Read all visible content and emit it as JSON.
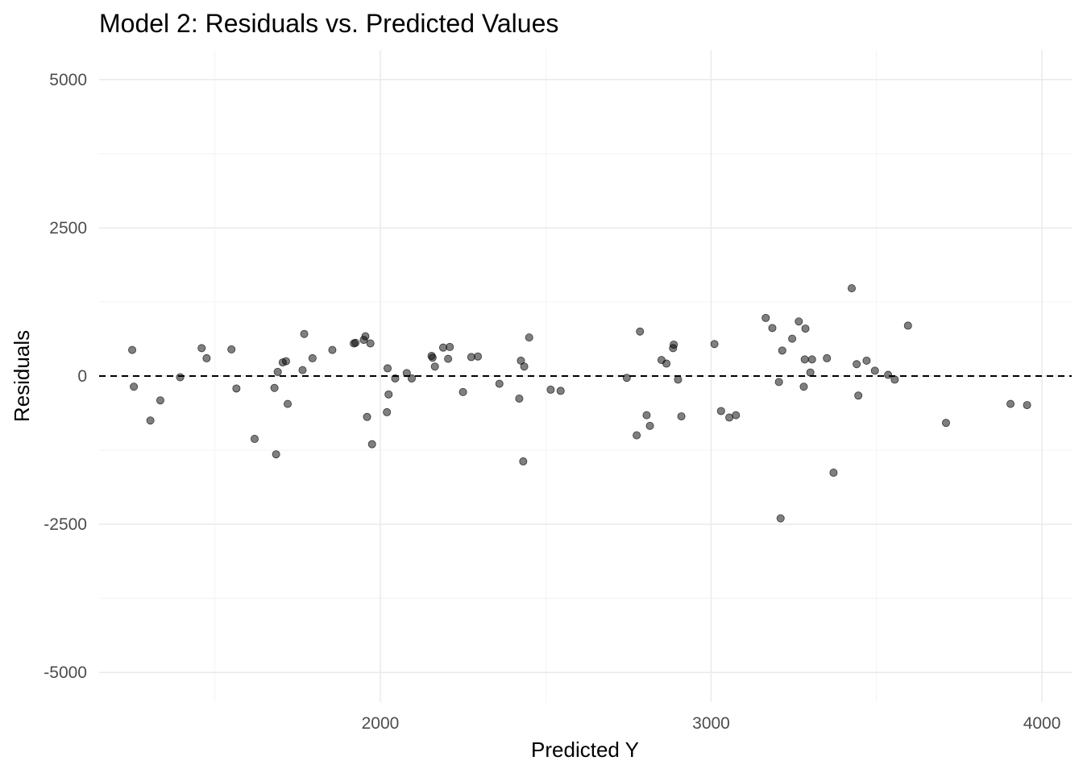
{
  "chart_data": {
    "type": "scatter",
    "title": "Model 2: Residuals vs. Predicted Values",
    "xlabel": "Predicted Y",
    "ylabel": "Residuals",
    "xlim": [
      1150,
      4090
    ],
    "ylim": [
      -5500,
      5500
    ],
    "x_ticks": [
      2000,
      3000,
      4000
    ],
    "x_minor_ticks": [
      1500,
      2500,
      3500
    ],
    "y_ticks": [
      -5000,
      -2500,
      0,
      2500,
      5000
    ],
    "y_minor_ticks": [
      -3750,
      -1250,
      1250,
      3750
    ],
    "grid": true,
    "legend": "none",
    "reference_line": {
      "y": 0,
      "style": "dashed"
    },
    "colors": {
      "point": "#000000",
      "grid": "#ebebeb",
      "reference_line": "#000000"
    },
    "points": [
      {
        "x": 1250,
        "y": 440
      },
      {
        "x": 1255,
        "y": -180
      },
      {
        "x": 1305,
        "y": -750
      },
      {
        "x": 1335,
        "y": -410
      },
      {
        "x": 1395,
        "y": -20
      },
      {
        "x": 1460,
        "y": 470
      },
      {
        "x": 1475,
        "y": 300
      },
      {
        "x": 1550,
        "y": 450
      },
      {
        "x": 1565,
        "y": -210
      },
      {
        "x": 1620,
        "y": -1060
      },
      {
        "x": 1680,
        "y": -200
      },
      {
        "x": 1685,
        "y": -1320
      },
      {
        "x": 1690,
        "y": 70
      },
      {
        "x": 1705,
        "y": 230
      },
      {
        "x": 1715,
        "y": 250
      },
      {
        "x": 1720,
        "y": -470
      },
      {
        "x": 1765,
        "y": 100
      },
      {
        "x": 1770,
        "y": 710
      },
      {
        "x": 1795,
        "y": 300
      },
      {
        "x": 1855,
        "y": 440
      },
      {
        "x": 1920,
        "y": 550
      },
      {
        "x": 1925,
        "y": 560
      },
      {
        "x": 1950,
        "y": 610
      },
      {
        "x": 1955,
        "y": 670
      },
      {
        "x": 1960,
        "y": -690
      },
      {
        "x": 1970,
        "y": 550
      },
      {
        "x": 1975,
        "y": -1150
      },
      {
        "x": 2020,
        "y": -610
      },
      {
        "x": 2022,
        "y": 130
      },
      {
        "x": 2025,
        "y": -310
      },
      {
        "x": 2045,
        "y": -40
      },
      {
        "x": 2080,
        "y": 50
      },
      {
        "x": 2095,
        "y": -40
      },
      {
        "x": 2155,
        "y": 340
      },
      {
        "x": 2158,
        "y": 310
      },
      {
        "x": 2165,
        "y": 160
      },
      {
        "x": 2190,
        "y": 480
      },
      {
        "x": 2205,
        "y": 290
      },
      {
        "x": 2210,
        "y": 490
      },
      {
        "x": 2250,
        "y": -270
      },
      {
        "x": 2275,
        "y": 320
      },
      {
        "x": 2295,
        "y": 330
      },
      {
        "x": 2360,
        "y": -130
      },
      {
        "x": 2420,
        "y": -380
      },
      {
        "x": 2425,
        "y": 260
      },
      {
        "x": 2432,
        "y": -1440
      },
      {
        "x": 2435,
        "y": 160
      },
      {
        "x": 2450,
        "y": 650
      },
      {
        "x": 2515,
        "y": -230
      },
      {
        "x": 2545,
        "y": -250
      },
      {
        "x": 2745,
        "y": -30
      },
      {
        "x": 2775,
        "y": -1000
      },
      {
        "x": 2785,
        "y": 750
      },
      {
        "x": 2805,
        "y": -660
      },
      {
        "x": 2815,
        "y": -840
      },
      {
        "x": 2850,
        "y": 270
      },
      {
        "x": 2865,
        "y": 210
      },
      {
        "x": 2885,
        "y": 470
      },
      {
        "x": 2887,
        "y": 530
      },
      {
        "x": 2900,
        "y": -60
      },
      {
        "x": 2910,
        "y": -680
      },
      {
        "x": 3010,
        "y": 540
      },
      {
        "x": 3030,
        "y": -590
      },
      {
        "x": 3055,
        "y": -700
      },
      {
        "x": 3075,
        "y": -660
      },
      {
        "x": 3165,
        "y": 980
      },
      {
        "x": 3185,
        "y": 810
      },
      {
        "x": 3205,
        "y": -100
      },
      {
        "x": 3210,
        "y": -2400
      },
      {
        "x": 3215,
        "y": 430
      },
      {
        "x": 3245,
        "y": 630
      },
      {
        "x": 3265,
        "y": 920
      },
      {
        "x": 3280,
        "y": -180
      },
      {
        "x": 3283,
        "y": 280
      },
      {
        "x": 3285,
        "y": 800
      },
      {
        "x": 3300,
        "y": 60
      },
      {
        "x": 3305,
        "y": 280
      },
      {
        "x": 3350,
        "y": 300
      },
      {
        "x": 3370,
        "y": -1630
      },
      {
        "x": 3425,
        "y": 1480
      },
      {
        "x": 3440,
        "y": 200
      },
      {
        "x": 3445,
        "y": -330
      },
      {
        "x": 3470,
        "y": 260
      },
      {
        "x": 3495,
        "y": 90
      },
      {
        "x": 3535,
        "y": 20
      },
      {
        "x": 3555,
        "y": -60
      },
      {
        "x": 3595,
        "y": 850
      },
      {
        "x": 3710,
        "y": -790
      },
      {
        "x": 3905,
        "y": -470
      },
      {
        "x": 3955,
        "y": -490
      }
    ]
  }
}
